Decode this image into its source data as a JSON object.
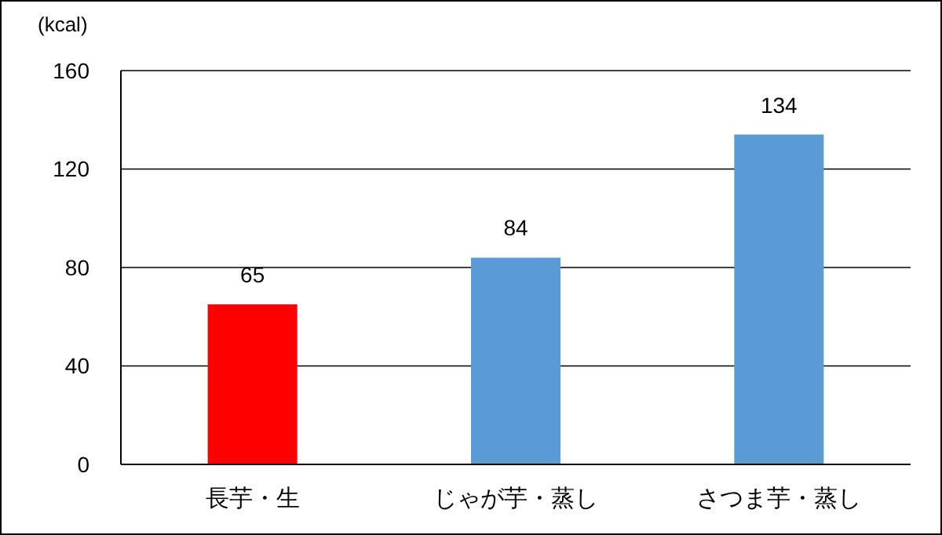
{
  "chart_data": {
    "type": "bar",
    "ylabel": "(kcal)",
    "categories": [
      "長芋・生",
      "じゃが芋・蒸し",
      "さつま芋・蒸し"
    ],
    "values": [
      65,
      84,
      134
    ],
    "colors": [
      "#ff0000",
      "#5b9bd5",
      "#5b9bd5"
    ],
    "ylim": [
      0,
      160
    ],
    "yticks": [
      0,
      40,
      80,
      120,
      160
    ],
    "grid": "y",
    "data_labels": true
  }
}
